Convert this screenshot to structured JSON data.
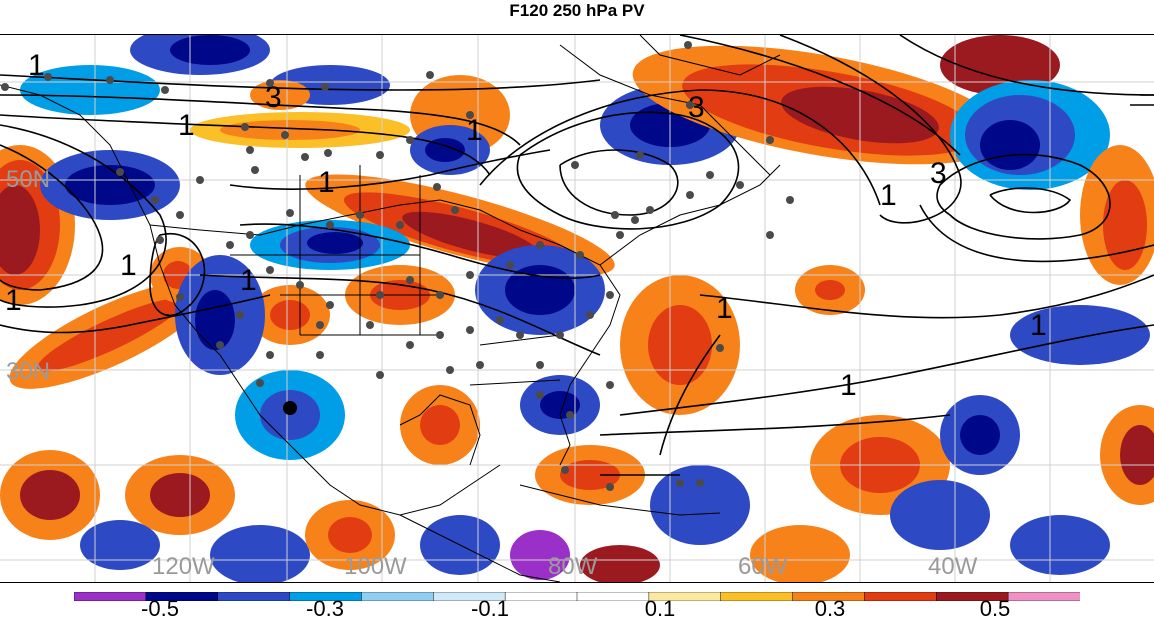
{
  "title": "F120 250 hPa PV",
  "map": {
    "latitude_labels": [
      "50N",
      "30N"
    ],
    "longitude_labels": [
      "120W",
      "100W",
      "80W",
      "60W",
      "40W"
    ],
    "contour_labels": [
      "1",
      "3",
      "1",
      "1",
      "1",
      "1",
      "3",
      "1",
      "1",
      "3",
      "1",
      "1",
      "1",
      "1"
    ]
  },
  "colorbar": {
    "tick_labels": [
      "-0.5",
      "-0.3",
      "-0.1",
      "0.1",
      "0.3",
      "0.5"
    ],
    "colors": [
      "#9b30c8",
      "#00088a",
      "#2e49c4",
      "#009ee6",
      "#8fd0f2",
      "#cfe9f8",
      "#ffffff",
      "#ffffff",
      "#fbe9a0",
      "#fbbf28",
      "#f7821a",
      "#e23c12",
      "#9b1a1f",
      "#f091c4"
    ]
  }
}
